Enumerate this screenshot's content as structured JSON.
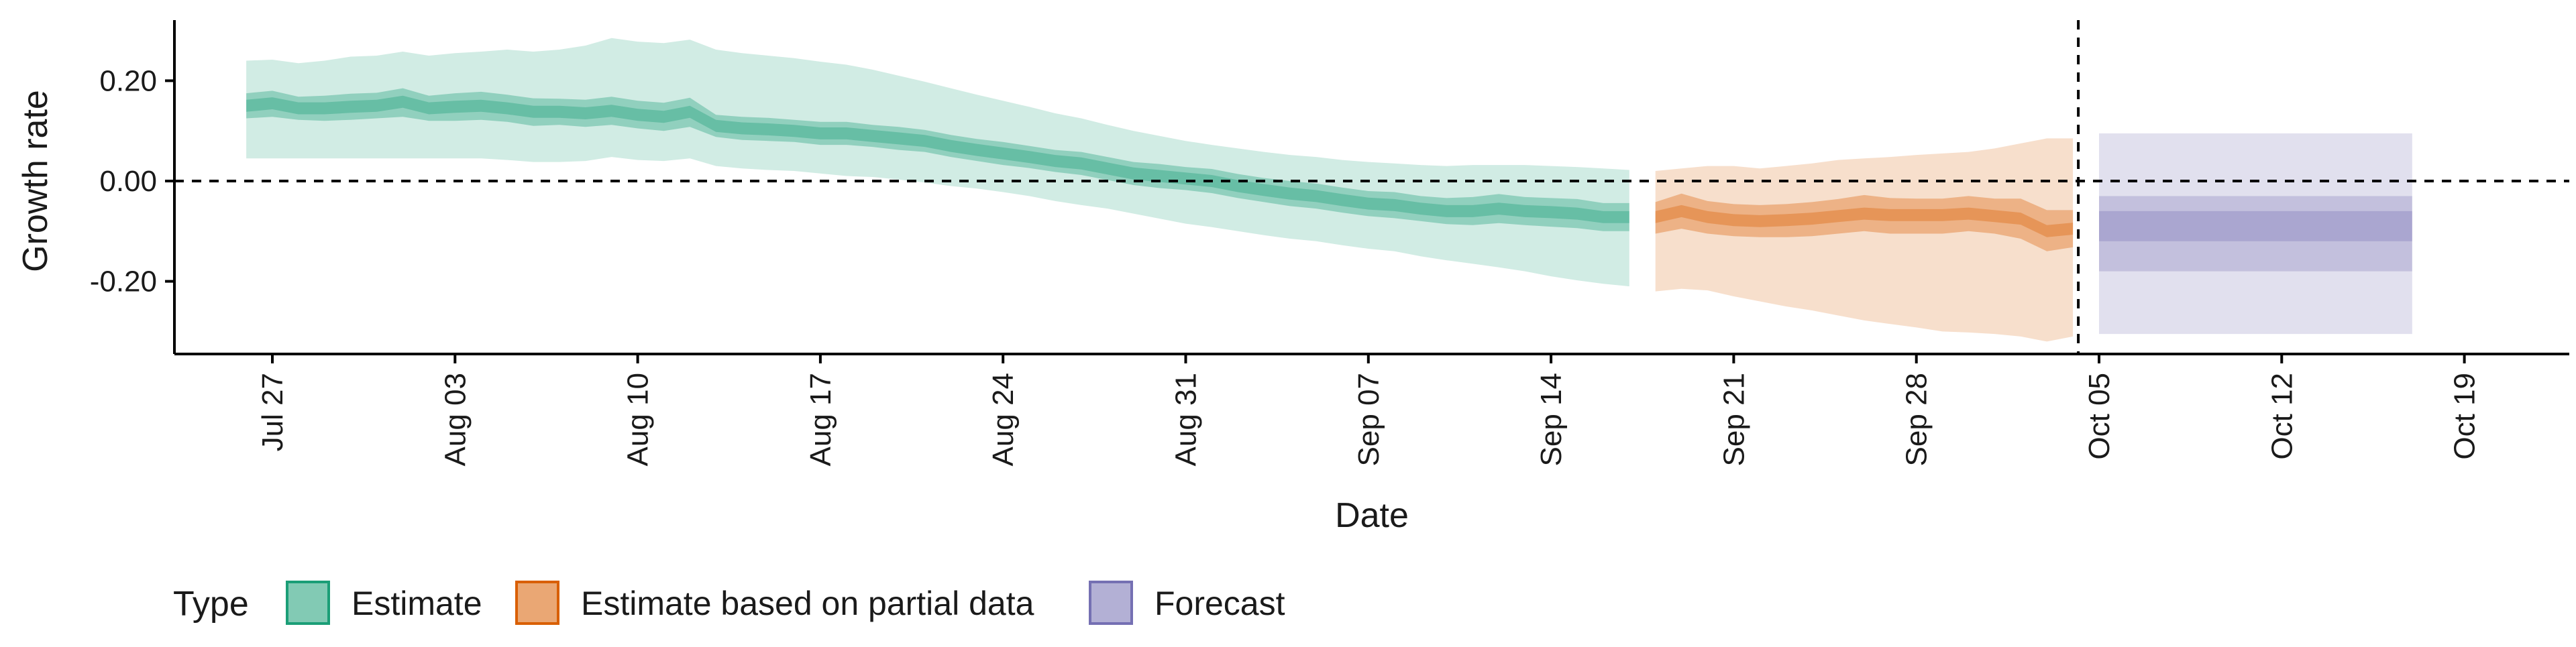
{
  "chart_data": {
    "type": "area",
    "xlabel": "Date",
    "ylabel": "Growth rate",
    "x_start": "2021-07-20",
    "xlim": [
      "2021-07-20",
      "2021-10-20"
    ],
    "ylim": [
      -0.34,
      0.32
    ],
    "yticks": [
      0.2,
      0.0,
      -0.2
    ],
    "ytick_labels": [
      "0.20",
      "0.00",
      "-0.20"
    ],
    "xticks": [
      "2021-07-27",
      "2021-08-03",
      "2021-08-10",
      "2021-08-17",
      "2021-08-24",
      "2021-08-31",
      "2021-09-07",
      "2021-09-14",
      "2021-09-21",
      "2021-09-28",
      "2021-10-05",
      "2021-10-12",
      "2021-10-19"
    ],
    "xtick_labels": [
      "Jul 27",
      "Aug 03",
      "Aug 10",
      "Aug 17",
      "Aug 24",
      "Aug 31",
      "Sep 07",
      "Sep 14",
      "Sep 21",
      "Sep 28",
      "Oct 05",
      "Oct 12",
      "Oct 19"
    ],
    "hline": 0.0,
    "vline": "2021-10-04",
    "grid": false,
    "legend": {
      "title": "Type",
      "placement": "bottom",
      "entries": [
        {
          "label": "Estimate",
          "color": "#1b9e77"
        },
        {
          "label": "Estimate based on partial data",
          "color": "#d95f02"
        },
        {
          "label": "Forecast",
          "color": "#7570b3"
        }
      ]
    },
    "series": [
      {
        "type": "Estimate",
        "color": "#1b9e77",
        "x": [
          "2021-07-26",
          "2021-07-27",
          "2021-07-28",
          "2021-07-29",
          "2021-07-30",
          "2021-07-31",
          "2021-08-01",
          "2021-08-02",
          "2021-08-03",
          "2021-08-04",
          "2021-08-05",
          "2021-08-06",
          "2021-08-07",
          "2021-08-08",
          "2021-08-09",
          "2021-08-10",
          "2021-08-11",
          "2021-08-12",
          "2021-08-13",
          "2021-08-14",
          "2021-08-15",
          "2021-08-16",
          "2021-08-17",
          "2021-08-18",
          "2021-08-19",
          "2021-08-20",
          "2021-08-21",
          "2021-08-22",
          "2021-08-23",
          "2021-08-24",
          "2021-08-25",
          "2021-08-26",
          "2021-08-27",
          "2021-08-28",
          "2021-08-29",
          "2021-08-30",
          "2021-08-31",
          "2021-09-01",
          "2021-09-02",
          "2021-09-03",
          "2021-09-04",
          "2021-09-05",
          "2021-09-06",
          "2021-09-07",
          "2021-09-08",
          "2021-09-09",
          "2021-09-10",
          "2021-09-11",
          "2021-09-12",
          "2021-09-13",
          "2021-09-14",
          "2021-09-15",
          "2021-09-16",
          "2021-09-17"
        ],
        "median": [
          0.15,
          0.155,
          0.145,
          0.145,
          0.148,
          0.15,
          0.158,
          0.145,
          0.148,
          0.15,
          0.145,
          0.138,
          0.138,
          0.135,
          0.14,
          0.132,
          0.128,
          0.138,
          0.11,
          0.105,
          0.103,
          0.1,
          0.095,
          0.095,
          0.09,
          0.085,
          0.08,
          0.07,
          0.062,
          0.055,
          0.048,
          0.04,
          0.035,
          0.025,
          0.015,
          0.01,
          0.005,
          0.0,
          -0.01,
          -0.018,
          -0.025,
          -0.03,
          -0.038,
          -0.045,
          -0.048,
          -0.055,
          -0.06,
          -0.06,
          -0.055,
          -0.06,
          -0.062,
          -0.065,
          -0.072,
          -0.072
        ],
        "lower50": [
          0.125,
          0.128,
          0.122,
          0.12,
          0.122,
          0.125,
          0.128,
          0.12,
          0.12,
          0.122,
          0.118,
          0.11,
          0.112,
          0.108,
          0.112,
          0.105,
          0.1,
          0.108,
          0.088,
          0.082,
          0.08,
          0.078,
          0.072,
          0.072,
          0.068,
          0.062,
          0.058,
          0.048,
          0.04,
          0.032,
          0.026,
          0.018,
          0.012,
          0.002,
          -0.008,
          -0.014,
          -0.018,
          -0.024,
          -0.034,
          -0.042,
          -0.05,
          -0.055,
          -0.063,
          -0.07,
          -0.074,
          -0.08,
          -0.086,
          -0.088,
          -0.084,
          -0.088,
          -0.091,
          -0.094,
          -0.1,
          -0.1
        ],
        "upper50": [
          0.175,
          0.18,
          0.168,
          0.17,
          0.174,
          0.176,
          0.185,
          0.17,
          0.175,
          0.178,
          0.172,
          0.165,
          0.164,
          0.162,
          0.168,
          0.16,
          0.156,
          0.166,
          0.132,
          0.128,
          0.126,
          0.122,
          0.118,
          0.118,
          0.112,
          0.108,
          0.102,
          0.092,
          0.084,
          0.078,
          0.07,
          0.062,
          0.058,
          0.048,
          0.038,
          0.034,
          0.028,
          0.024,
          0.014,
          0.006,
          0.0,
          -0.005,
          -0.013,
          -0.02,
          -0.022,
          -0.03,
          -0.034,
          -0.032,
          -0.026,
          -0.032,
          -0.034,
          -0.036,
          -0.044,
          -0.044
        ],
        "lower90": [
          0.045,
          0.045,
          0.045,
          0.045,
          0.045,
          0.045,
          0.045,
          0.045,
          0.045,
          0.045,
          0.042,
          0.038,
          0.038,
          0.04,
          0.048,
          0.042,
          0.04,
          0.045,
          0.03,
          0.025,
          0.022,
          0.02,
          0.015,
          0.01,
          0.008,
          0.003,
          -0.003,
          -0.01,
          -0.015,
          -0.022,
          -0.03,
          -0.04,
          -0.048,
          -0.055,
          -0.065,
          -0.075,
          -0.085,
          -0.092,
          -0.1,
          -0.108,
          -0.115,
          -0.12,
          -0.128,
          -0.135,
          -0.14,
          -0.15,
          -0.158,
          -0.165,
          -0.172,
          -0.18,
          -0.19,
          -0.198,
          -0.205,
          -0.21
        ],
        "upper90": [
          0.24,
          0.242,
          0.235,
          0.24,
          0.248,
          0.25,
          0.258,
          0.25,
          0.255,
          0.258,
          0.262,
          0.258,
          0.262,
          0.27,
          0.285,
          0.278,
          0.275,
          0.282,
          0.262,
          0.255,
          0.25,
          0.245,
          0.238,
          0.232,
          0.222,
          0.21,
          0.198,
          0.185,
          0.172,
          0.16,
          0.148,
          0.135,
          0.125,
          0.112,
          0.1,
          0.09,
          0.08,
          0.072,
          0.065,
          0.058,
          0.052,
          0.048,
          0.042,
          0.038,
          0.035,
          0.032,
          0.03,
          0.032,
          0.032,
          0.032,
          0.03,
          0.028,
          0.025,
          0.022
        ]
      },
      {
        "type": "Estimate based on partial data",
        "color": "#d95f02",
        "x": [
          "2021-09-18",
          "2021-09-19",
          "2021-09-20",
          "2021-09-21",
          "2021-09-22",
          "2021-09-23",
          "2021-09-24",
          "2021-09-25",
          "2021-09-26",
          "2021-09-27",
          "2021-09-28",
          "2021-09-29",
          "2021-09-30",
          "2021-10-01",
          "2021-10-02",
          "2021-10-03",
          "2021-10-04"
        ],
        "median": [
          -0.072,
          -0.06,
          -0.072,
          -0.078,
          -0.08,
          -0.078,
          -0.075,
          -0.07,
          -0.065,
          -0.068,
          -0.068,
          -0.068,
          -0.065,
          -0.07,
          -0.075,
          -0.1,
          -0.095
        ],
        "lower50": [
          -0.105,
          -0.095,
          -0.105,
          -0.11,
          -0.112,
          -0.112,
          -0.11,
          -0.105,
          -0.1,
          -0.105,
          -0.105,
          -0.105,
          -0.1,
          -0.105,
          -0.115,
          -0.14,
          -0.132
        ],
        "upper50": [
          -0.042,
          -0.025,
          -0.04,
          -0.046,
          -0.048,
          -0.046,
          -0.042,
          -0.036,
          -0.028,
          -0.034,
          -0.035,
          -0.035,
          -0.03,
          -0.035,
          -0.035,
          -0.058,
          -0.058
        ],
        "lower90": [
          -0.22,
          -0.215,
          -0.218,
          -0.23,
          -0.24,
          -0.25,
          -0.258,
          -0.268,
          -0.278,
          -0.285,
          -0.292,
          -0.3,
          -0.302,
          -0.305,
          -0.31,
          -0.32,
          -0.31
        ],
        "upper90": [
          0.02,
          0.025,
          0.03,
          0.03,
          0.025,
          0.03,
          0.035,
          0.042,
          0.045,
          0.048,
          0.052,
          0.055,
          0.058,
          0.065,
          0.075,
          0.085,
          0.085
        ]
      },
      {
        "type": "Forecast",
        "color": "#7570b3",
        "x": [
          "2021-10-05",
          "2021-10-17"
        ],
        "median": [
          -0.09,
          -0.09
        ],
        "lower50": [
          -0.12,
          -0.12
        ],
        "upper50": [
          -0.06,
          -0.06
        ],
        "lower75": [
          -0.18,
          -0.18
        ],
        "upper75": [
          -0.03,
          -0.03
        ],
        "lower90": [
          -0.305,
          -0.305
        ],
        "upper90": [
          0.095,
          0.095
        ]
      }
    ]
  }
}
